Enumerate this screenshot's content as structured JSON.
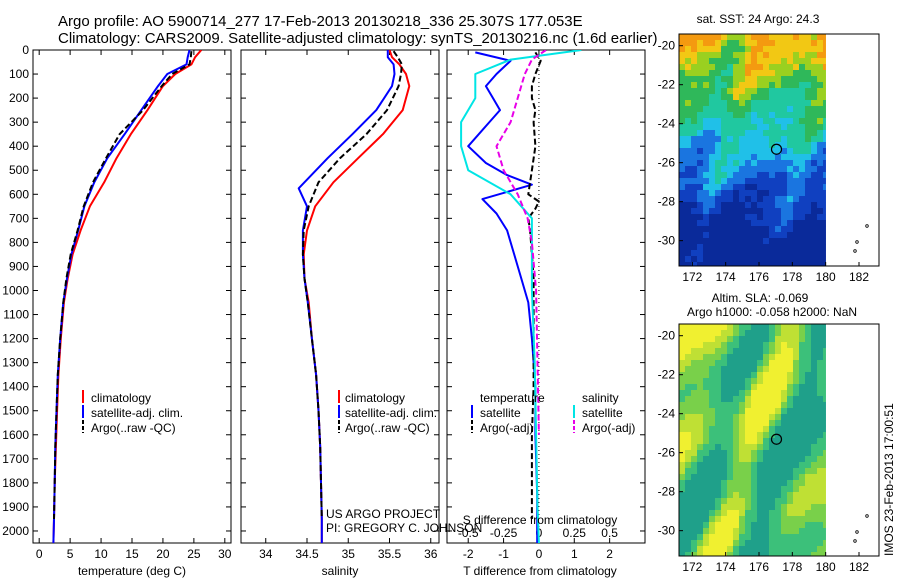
{
  "header": {
    "line1": "Argo profile: AO 5900714_277 17-Feb-2013 20130218_336 25.307S 177.053E",
    "line2": "Climatology: CARS2009. Satellite-adjusted climatology: synTS_20130216.nc (1.6d earlier)"
  },
  "colors": {
    "climatology": "#ff0000",
    "satellite": "#0000ff",
    "argo": "#000000",
    "sal_satellite": "#00e5e5",
    "sal_argo": "#e800e8"
  },
  "credits": {
    "project": "US ARGO PROJECT",
    "pi": "PI: GREGORY C. JOHNSON",
    "stamp": "IMOS 23-Feb-2013 17:00:51"
  },
  "chart_data": [
    {
      "type": "line",
      "name": "temperature",
      "xlabel": "temperature (deg C)",
      "ylabel": "",
      "xlim": [
        -1,
        31
      ],
      "ylim": [
        2050,
        0
      ],
      "x_ticks": [
        "0",
        "5",
        "10",
        "15",
        "20",
        "25",
        "30"
      ],
      "y_ticks": [
        "0",
        "100",
        "200",
        "300",
        "400",
        "500",
        "600",
        "700",
        "800",
        "900",
        "1000",
        "1100",
        "1200",
        "1300",
        "1400",
        "1500",
        "1600",
        "1700",
        "1800",
        "1900",
        "2000"
      ],
      "legend": [
        "climatology",
        "satellite-adj. clim.",
        "Argo(..raw -QC)"
      ],
      "series": [
        {
          "name": "climatology",
          "x": [
            26.2,
            25.2,
            24.6,
            22.0,
            20.0,
            17.5,
            14.8,
            12.5,
            10.5,
            8.2,
            6.7,
            5.4,
            4.6,
            4.0,
            3.5,
            3.1,
            2.9,
            2.7,
            2.5,
            2.4,
            2.3
          ],
          "y": [
            0,
            30,
            60,
            100,
            150,
            250,
            350,
            450,
            550,
            650,
            750,
            850,
            950,
            1050,
            1200,
            1350,
            1500,
            1650,
            1800,
            1950,
            2050
          ]
        },
        {
          "name": "satellite-adj. clim.",
          "x": [
            24.3,
            24.0,
            23.8,
            20.7,
            19.2,
            16.5,
            13.8,
            11.0,
            8.9,
            7.3,
            6.3,
            5.2,
            4.5,
            3.9,
            3.4,
            3.0,
            2.8,
            2.6,
            2.5,
            2.4,
            2.3
          ],
          "y": [
            0,
            30,
            60,
            100,
            150,
            250,
            350,
            450,
            550,
            650,
            750,
            850,
            950,
            1050,
            1200,
            1350,
            1500,
            1650,
            1800,
            1950,
            2050
          ]
        },
        {
          "name": "Argo(..raw -QC)",
          "x": [
            24.6,
            24.5,
            24.3,
            21.5,
            19.8,
            16.8,
            13.0,
            10.8,
            8.7,
            7.2,
            6.2,
            5.1,
            4.4,
            3.9,
            3.4,
            3.0,
            2.8,
            2.6,
            2.5,
            2.4
          ],
          "y": [
            5,
            30,
            60,
            100,
            150,
            250,
            350,
            450,
            550,
            650,
            750,
            850,
            950,
            1050,
            1200,
            1350,
            1500,
            1650,
            1800,
            1950
          ]
        }
      ]
    },
    {
      "type": "line",
      "name": "salinity",
      "xlabel": "salinity",
      "xlim": [
        33.7,
        36.1
      ],
      "ylim": [
        2050,
        0
      ],
      "x_ticks": [
        "34",
        "34.5",
        "35",
        "35.5",
        "36"
      ],
      "legend": [
        "climatology",
        "satellite-adj. clim.",
        "Argo(..raw -QC)"
      ],
      "series": [
        {
          "name": "climatology",
          "x": [
            35.5,
            35.53,
            35.62,
            35.7,
            35.74,
            35.66,
            35.42,
            35.12,
            34.82,
            34.6,
            34.5,
            34.46,
            34.47,
            34.52,
            34.56,
            34.61,
            34.64,
            34.66,
            34.67,
            34.68,
            34.68
          ],
          "y": [
            0,
            30,
            60,
            100,
            150,
            250,
            350,
            450,
            550,
            650,
            750,
            850,
            950,
            1050,
            1200,
            1350,
            1500,
            1650,
            1800,
            1950,
            2050
          ]
        },
        {
          "name": "satellite-adj. clim.",
          "x": [
            35.48,
            35.48,
            35.55,
            35.56,
            35.53,
            35.34,
            35.05,
            34.75,
            34.4,
            34.5,
            34.45,
            34.45,
            34.47,
            34.51,
            34.56,
            34.61,
            34.64,
            34.66,
            34.67,
            34.68,
            34.68
          ],
          "y": [
            0,
            30,
            60,
            100,
            150,
            250,
            350,
            450,
            575,
            650,
            750,
            850,
            950,
            1050,
            1200,
            1350,
            1500,
            1650,
            1800,
            1950,
            2050
          ]
        },
        {
          "name": "Argo(..raw -QC)",
          "x": [
            35.55,
            35.6,
            35.65,
            35.64,
            35.61,
            35.47,
            35.22,
            34.9,
            34.64,
            34.52,
            34.46,
            34.45,
            34.47,
            34.51,
            34.56,
            34.61,
            34.64,
            34.66,
            34.67,
            34.68
          ],
          "y": [
            5,
            30,
            60,
            100,
            150,
            250,
            350,
            450,
            550,
            650,
            750,
            850,
            950,
            1050,
            1200,
            1350,
            1500,
            1650,
            1800,
            1950
          ]
        }
      ]
    },
    {
      "type": "line",
      "name": "difference from climatology",
      "xlabel": "T difference from climatology",
      "x2label": "S difference from climatology",
      "xlim": [
        -2.6,
        3.0
      ],
      "ylim": [
        2050,
        0
      ],
      "x_ticks": [
        "-2",
        "-1",
        "0",
        "1",
        "2"
      ],
      "x2_ticks": [
        "-0.5",
        "-0.25",
        "0",
        "0.25",
        "0.5"
      ],
      "legend_titles": [
        "temperature",
        "salinity"
      ],
      "legend": [
        "satellite",
        "Argo(-adj)",
        "satellite",
        "Argo(-adj)"
      ],
      "series": [
        {
          "name": "temperature satellite",
          "x": [
            -1.8,
            -0.8,
            -1.2,
            -1.5,
            -1.3,
            -1.1,
            -1.4,
            -2.0,
            -1.5,
            -0.9,
            -0.2,
            -1.6,
            -1.2,
            -0.9,
            -0.7,
            -0.5,
            -0.3,
            -0.2,
            -0.1,
            -0.1,
            -0.05,
            -0.05
          ],
          "y": [
            10,
            45,
            100,
            150,
            200,
            250,
            300,
            400,
            470,
            520,
            560,
            620,
            680,
            750,
            850,
            950,
            1050,
            1200,
            1400,
            1600,
            1850,
            2050
          ]
        },
        {
          "name": "temperature Argo(-adj)",
          "x": [
            -0.1,
            0.05,
            -0.1,
            -0.2,
            -0.2,
            -0.1,
            -0.15,
            -0.1,
            -0.2,
            -0.3,
            0.0,
            -0.1,
            -0.3,
            -0.25,
            -0.2,
            -0.15,
            -0.15,
            -0.15,
            -0.15,
            -0.2,
            -0.2
          ],
          "y": [
            10,
            45,
            100,
            150,
            200,
            250,
            300,
            400,
            500,
            600,
            630,
            660,
            700,
            750,
            850,
            950,
            1050,
            1200,
            1400,
            1600,
            1950
          ]
        },
        {
          "name": "salinity satellite",
          "x": [
            0.3,
            -0.2,
            -0.45,
            -0.45,
            -0.55,
            -0.55,
            -0.5,
            -0.2,
            -0.05,
            -0.05,
            -0.05,
            -0.03,
            -0.02,
            -0.01,
            0.0
          ],
          "y": [
            0,
            40,
            100,
            200,
            300,
            400,
            500,
            600,
            700,
            800,
            1000,
            1300,
            1600,
            1900,
            2050
          ]
        },
        {
          "name": "salinity Argo(-adj)",
          "x": [
            0.05,
            -0.05,
            -0.1,
            -0.15,
            -0.2,
            -0.3,
            -0.25,
            -0.15,
            -0.08,
            -0.05,
            -0.02,
            -0.01,
            0.0
          ],
          "y": [
            0,
            40,
            100,
            200,
            300,
            400,
            500,
            600,
            700,
            800,
            1000,
            1300,
            1600
          ]
        }
      ]
    },
    {
      "type": "heatmap",
      "name": "sat. SST",
      "title": "sat. SST: 24  Argo: 24.3",
      "x_ticks": [
        "172",
        "174",
        "176",
        "178",
        "180",
        "182"
      ],
      "y_ticks": [
        "-20",
        "-22",
        "-24",
        "-26",
        "-28",
        "-30"
      ],
      "xlim": [
        171.2,
        183.2
      ],
      "ylim": [
        -31.3,
        -19.4
      ],
      "argo_position": [
        177.05,
        -25.31
      ]
    },
    {
      "type": "heatmap",
      "name": "Altim. SLA",
      "title": "Altim. SLA: -0.069",
      "subtitle": "Argo h1000: -0.058  h2000: NaN",
      "x_ticks": [
        "172",
        "174",
        "176",
        "178",
        "180",
        "182"
      ],
      "y_ticks": [
        "-20",
        "-22",
        "-24",
        "-26",
        "-28",
        "-30"
      ],
      "xlim": [
        171.2,
        183.2
      ],
      "ylim": [
        -31.3,
        -19.4
      ],
      "argo_position": [
        177.05,
        -25.31
      ]
    }
  ]
}
